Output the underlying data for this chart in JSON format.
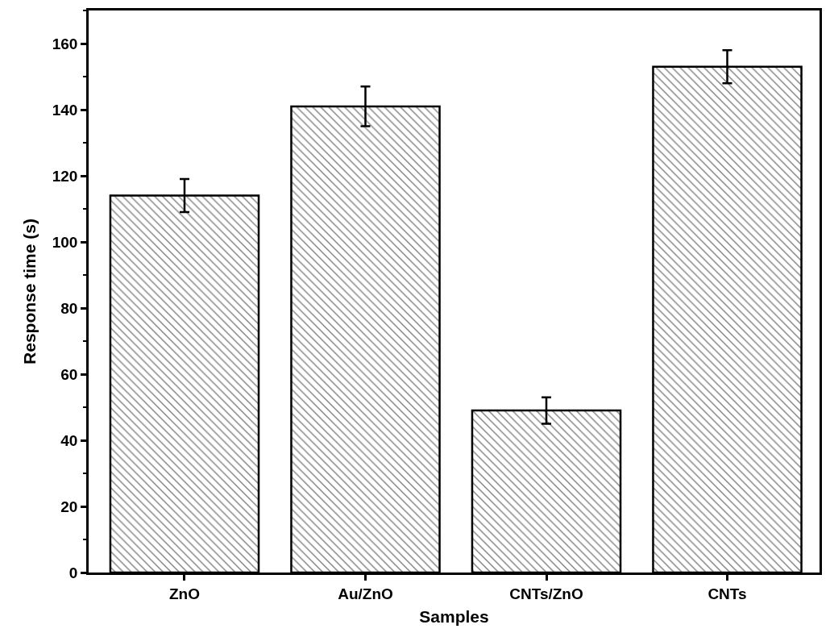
{
  "chart_data": {
    "type": "bar",
    "xlabel": "Samples",
    "ylabel": "Response time (s)",
    "categories": [
      "ZnO",
      "Au/ZnO",
      "CNTs/ZnO",
      "CNTs"
    ],
    "values": [
      114,
      141,
      49,
      153
    ],
    "errors": [
      5,
      6,
      4,
      5
    ],
    "color": "#000000",
    "ylim": [
      0,
      170
    ],
    "yticks": [
      0,
      20,
      40,
      60,
      80,
      100,
      120,
      140,
      160
    ],
    "legend": false
  }
}
